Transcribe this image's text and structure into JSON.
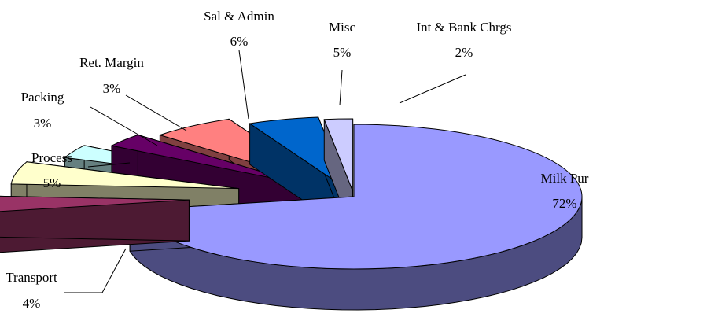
{
  "chart_data": {
    "type": "pie",
    "style": "3d-exploded",
    "title": "",
    "slices": [
      {
        "label": "Milk Pur",
        "value": 72,
        "percent_label": "72%",
        "color": "#9999ff",
        "side_color": "#4c4c80"
      },
      {
        "label": "Transport",
        "value": 4,
        "percent_label": "4%",
        "color": "#993366",
        "side_color": "#4d1a33"
      },
      {
        "label": "Process",
        "value": 5,
        "percent_label": "5%",
        "color": "#ffffcc",
        "side_color": "#808066"
      },
      {
        "label": "Packing",
        "value": 3,
        "percent_label": "3%",
        "color": "#ccffff",
        "side_color": "#668080"
      },
      {
        "label": "Ret. Margin",
        "value": 3,
        "percent_label": "3%",
        "color": "#660066",
        "side_color": "#330033"
      },
      {
        "label": "Sal & Admin",
        "value": 6,
        "percent_label": "6%",
        "color": "#ff8080",
        "side_color": "#804040"
      },
      {
        "label": "Misc",
        "value": 5,
        "percent_label": "5%",
        "color": "#0066cc",
        "side_color": "#003366"
      },
      {
        "label": "Int & Bank Chrgs",
        "value": 2,
        "percent_label": "2%",
        "color": "#ccccff",
        "side_color": "#666680"
      }
    ],
    "legend": "none",
    "data_labels": "outside-with-leaders"
  }
}
